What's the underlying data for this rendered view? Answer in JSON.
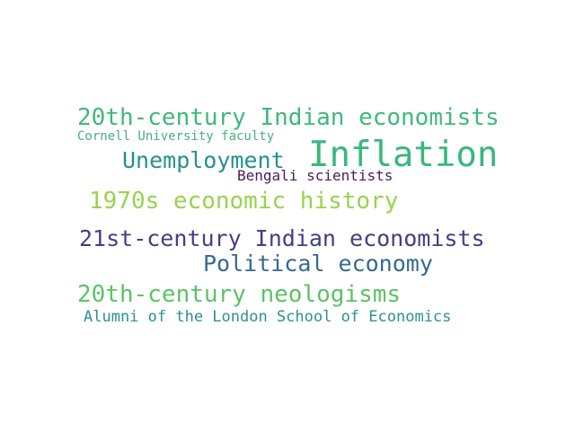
{
  "words": [
    {
      "text": "20th-century Indian economists",
      "color": "#3fb97a"
    },
    {
      "text": "Cornell University faculty",
      "color": "#45b17e"
    },
    {
      "text": "Inflation",
      "color": "#3ab77c"
    },
    {
      "text": "Unemployment",
      "color": "#25918c"
    },
    {
      "text": "Bengali scientists",
      "color": "#4b1a63"
    },
    {
      "text": "1970s economic history",
      "color": "#98d34f"
    },
    {
      "text": "21st-century Indian economists",
      "color": "#433f83"
    },
    {
      "text": "Political economy",
      "color": "#366a8f"
    },
    {
      "text": "20th-century neologisms",
      "color": "#5cc368"
    },
    {
      "text": "Alumni of the London School of Economics",
      "color": "#2f8f92"
    }
  ]
}
